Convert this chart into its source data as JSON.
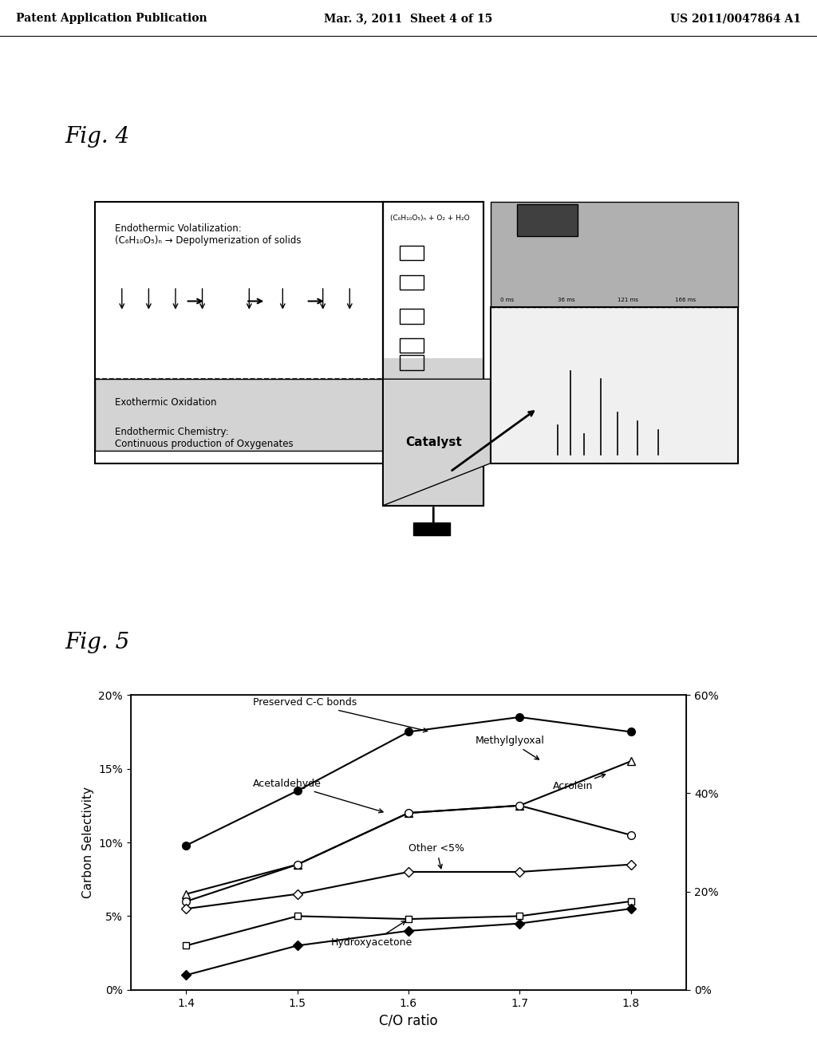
{
  "fig4": {
    "title": "Fig. 4",
    "text_top_left": "Endothermic Volatilization:\n(C₆H₁₀O₅)ₙ → Depolymerization of solids",
    "text_exothermic": "Exothermic Oxidation",
    "text_endothermic_chem": "Endothermic Chemistry:\nContinuous production of Oxygenates",
    "text_catalyst": "Catalyst",
    "text_formula": "(C₆H₁₀O₅)ₙ + O₂ + H₂O"
  },
  "fig5": {
    "title": "Fig. 5",
    "xlabel": "C/O ratio",
    "ylabel_left": "Carbon Selectivity",
    "x": [
      1.4,
      1.5,
      1.6,
      1.7,
      1.8
    ],
    "methylglyoxal_y": [
      9.8,
      13.5,
      17.5,
      18.5,
      17.5
    ],
    "acrolein_y": [
      6.5,
      8.5,
      12.0,
      12.5,
      15.5
    ],
    "acetaldehyde_y": [
      6.0,
      8.5,
      12.0,
      12.5,
      10.5
    ],
    "other_y": [
      5.5,
      6.5,
      8.0,
      8.0,
      8.5
    ],
    "hydroxyacetone_y": [
      3.0,
      5.0,
      4.8,
      5.0,
      6.0
    ],
    "bottom_y": [
      1.0,
      3.0,
      4.0,
      4.5,
      5.5
    ]
  },
  "header": {
    "left": "Patent Application Publication",
    "center": "Mar. 3, 2011  Sheet 4 of 15",
    "right": "US 2011/0047864 A1"
  },
  "background_color": "#ffffff"
}
